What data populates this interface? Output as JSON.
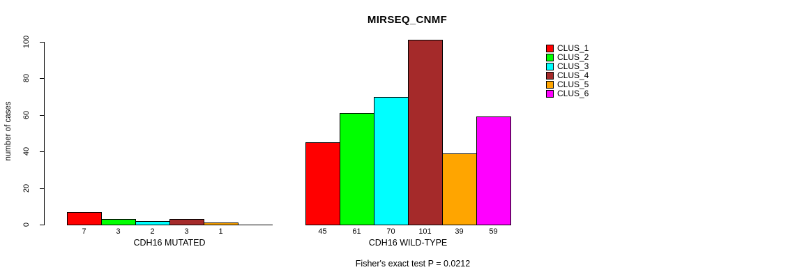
{
  "chart_data": {
    "type": "bar",
    "title": "MIRSEQ_CNMF",
    "ylabel": "number of cases",
    "xlabel": "",
    "ylim": [
      0,
      100
    ],
    "yticks": [
      0,
      20,
      40,
      60,
      80,
      100
    ],
    "grid": false,
    "legend_position": "right",
    "categories": [
      "CLUS_1",
      "CLUS_2",
      "CLUS_3",
      "CLUS_4",
      "CLUS_5",
      "CLUS_6"
    ],
    "category_colors": [
      "#FF0000",
      "#00FF00",
      "#00FFFF",
      "#A52A2A",
      "#FFA500",
      "#FF00FF"
    ],
    "series": [
      {
        "name": "CDH16 MUTATED",
        "values": [
          7,
          3,
          2,
          3,
          1,
          0
        ],
        "bar_labels": [
          "7",
          "3",
          "2",
          "3",
          "1",
          ""
        ]
      },
      {
        "name": "CDH16 WILD-TYPE",
        "values": [
          45,
          61,
          70,
          101,
          39,
          59
        ],
        "bar_labels": [
          "45",
          "61",
          "70",
          "101",
          "39",
          "59"
        ]
      }
    ],
    "annotation": "Fisher's exact test P = 0.0212"
  }
}
